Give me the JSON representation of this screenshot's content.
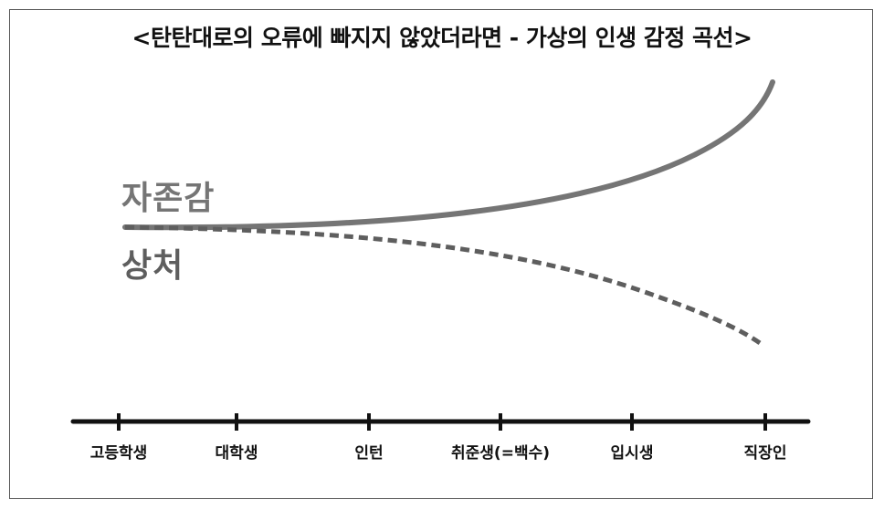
{
  "title": "<탄탄대로의 오류에 빠지지 않았더라면 - 가상의 인생 감정 곡선>",
  "series": {
    "self_esteem": {
      "label": "자존감",
      "style": "solid",
      "color": "#757575"
    },
    "hurt": {
      "label": "상처",
      "style": "dashed",
      "color": "#5e5e5e"
    }
  },
  "timeline": {
    "stages": [
      "고등학생",
      "대학생",
      "인턴",
      "취준생(=백수)",
      "입시생",
      "직장인"
    ]
  },
  "colors": {
    "axis": "#111111",
    "frame": "#555555",
    "text": "#111111"
  }
}
